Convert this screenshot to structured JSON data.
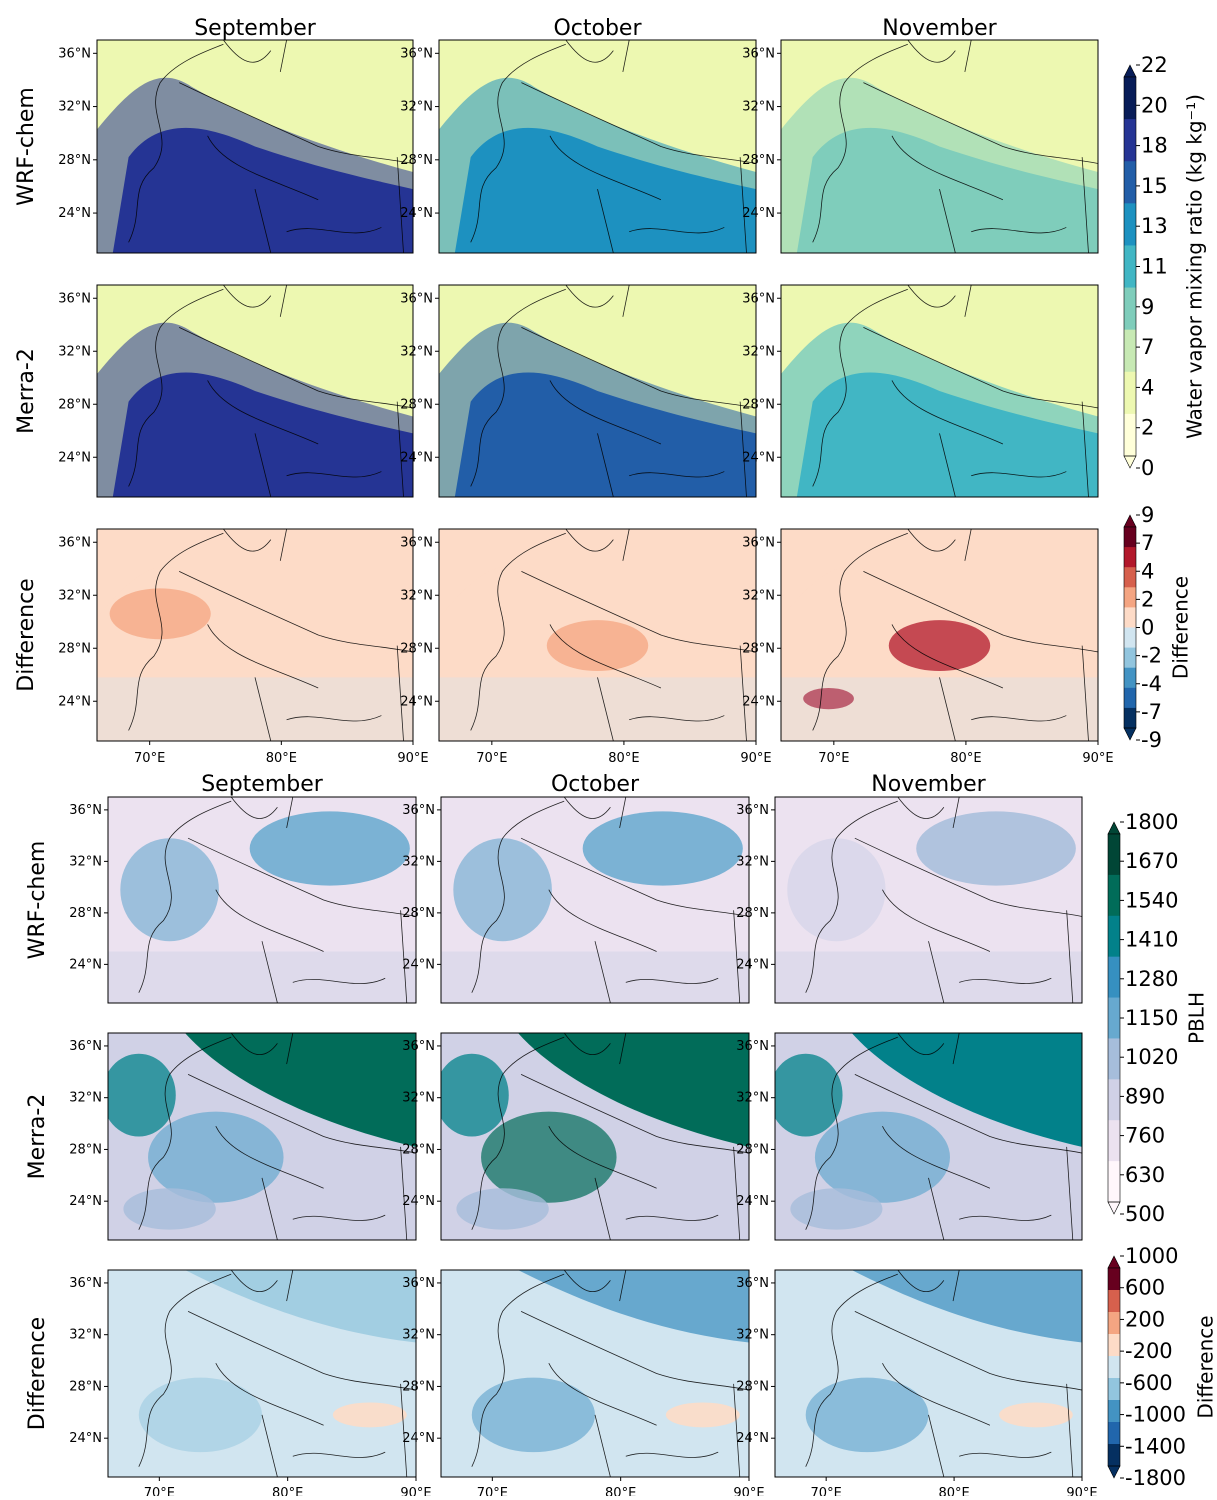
{
  "months": [
    "September",
    "October",
    "November"
  ],
  "row_labels": [
    "WRF-chem",
    "Merra-2",
    "Difference"
  ],
  "lat_ticks": [
    "36°N",
    "32°N",
    "28°N",
    "24°N"
  ],
  "lon_ticks": [
    "70°E",
    "80°E",
    "90°E"
  ],
  "panel_groups": [
    {
      "variable": "water_vapor",
      "colorbars": [
        {
          "label": "Water vapor mixing ratio (kg kg⁻¹)",
          "ticks": [
            "22",
            "20",
            "18",
            "15",
            "13",
            "11",
            "9",
            "7",
            "4",
            "2",
            "0"
          ],
          "colors": [
            "#081d58",
            "#253494",
            "#225ea8",
            "#1d91c0",
            "#41b6c4",
            "#7fcdbb",
            "#c7e9b4",
            "#edf8b1",
            "#ffffd9"
          ]
        },
        {
          "label": "Difference",
          "ticks": [
            "9",
            "7",
            "4",
            "2",
            "0",
            "-2",
            "-4",
            "-7",
            "-9"
          ],
          "colors": [
            "#67001f",
            "#b2182b",
            "#d6604d",
            "#f4a582",
            "#fddbc7",
            "#d1e5f0",
            "#92c5de",
            "#4393c3",
            "#2166ac",
            "#053061"
          ]
        }
      ]
    },
    {
      "variable": "pblh",
      "colorbars": [
        {
          "label": "PBLH",
          "ticks": [
            "1800",
            "1670",
            "1540",
            "1410",
            "1280",
            "1150",
            "1020",
            "890",
            "760",
            "630",
            "500"
          ],
          "colors": [
            "#014636",
            "#016c59",
            "#02818a",
            "#3690c0",
            "#67a9cf",
            "#a6bddb",
            "#d0d1e6",
            "#ece2f0",
            "#fff7fb"
          ]
        },
        {
          "label": "Difference",
          "ticks": [
            "1000",
            "600",
            "200",
            "-200",
            "-600",
            "-1000",
            "-1400",
            "-1800"
          ],
          "colors": [
            "#67001f",
            "#d6604d",
            "#f4a582",
            "#fddbc7",
            "#d1e5f0",
            "#92c5de",
            "#4393c3",
            "#2166ac",
            "#053061"
          ]
        }
      ]
    }
  ],
  "panels": {
    "wv_wrf": [
      "#253494",
      "#1d91c0",
      "#7fcdbb"
    ],
    "wv_merra": [
      "#253494",
      "#225ea8",
      "#41b6c4"
    ],
    "wv_diff": [
      "#f4a582",
      "#f4a582",
      "#b2182b"
    ],
    "pb_wrf": [
      "#67a9cf",
      "#67a9cf",
      "#a6bddb"
    ],
    "pb_merra": [
      "#016c59",
      "#016c59",
      "#02818a"
    ],
    "pb_diff": [
      "#92c5de",
      "#4393c3",
      "#4393c3"
    ]
  }
}
